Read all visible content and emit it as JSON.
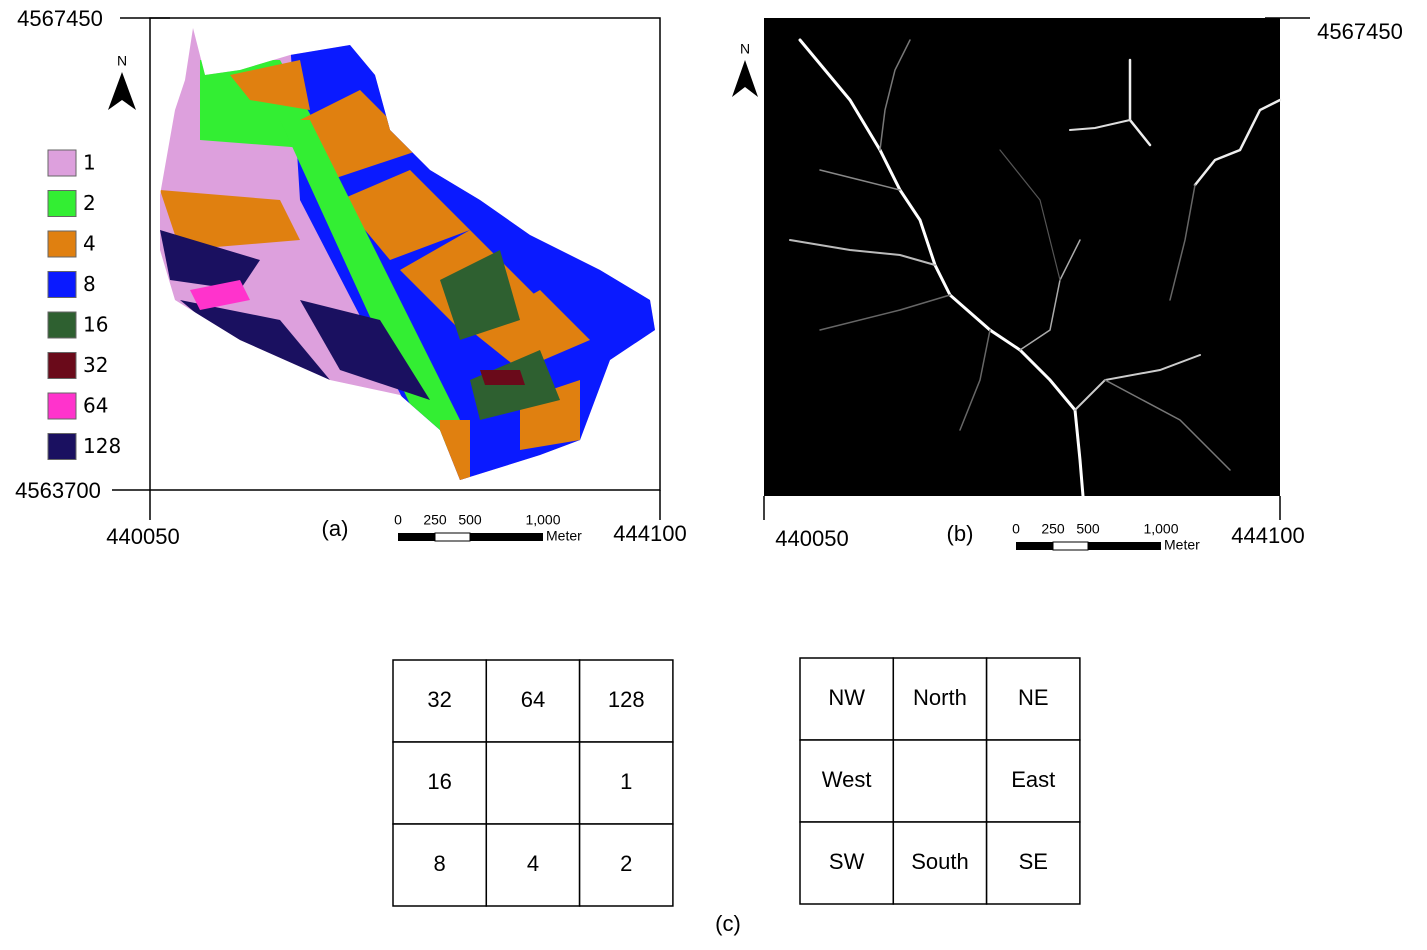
{
  "panel_a": {
    "label": "(a)",
    "north": "N",
    "y_top": "4567450",
    "y_bottom": "4563700",
    "x_left": "440050",
    "x_right": "444100",
    "legend": [
      {
        "label": "1",
        "color": "#dda0dd"
      },
      {
        "label": "2",
        "color": "#33ee33"
      },
      {
        "label": "4",
        "color": "#e08010"
      },
      {
        "label": "8",
        "color": "#0a1aff"
      },
      {
        "label": "16",
        "color": "#2e6030"
      },
      {
        "label": "32",
        "color": "#6a0a1a"
      },
      {
        "label": "64",
        "color": "#ff33cc"
      },
      {
        "label": "128",
        "color": "#1a1060"
      }
    ],
    "scale": {
      "ticks": [
        "0",
        "250",
        "500",
        "1,000"
      ],
      "unit": "Meter"
    }
  },
  "panel_b": {
    "label": "(b)",
    "north": "N",
    "y_top": "4567450",
    "x_left": "440050",
    "x_right": "444100",
    "scale": {
      "ticks": [
        "0",
        "250",
        "500",
        "1,000"
      ],
      "unit": "Meter"
    }
  },
  "panel_c": {
    "label": "(c)",
    "codes": [
      [
        "32",
        "64",
        "128"
      ],
      [
        "16",
        null,
        "1"
      ],
      [
        "8",
        "4",
        "2"
      ]
    ],
    "directions": [
      [
        "NW",
        "North",
        "NE"
      ],
      [
        "West",
        null,
        "East"
      ],
      [
        "SW",
        "South",
        "SE"
      ]
    ]
  }
}
